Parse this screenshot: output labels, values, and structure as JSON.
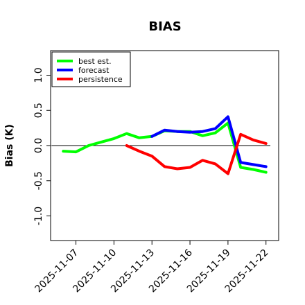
{
  "chart_data": {
    "type": "line",
    "title": "BIAS",
    "xlabel": "",
    "ylabel": "Bias (K)",
    "ylim": [
      -1.35,
      1.35
    ],
    "xlim": [
      "2025-11-05",
      "2025-11-23"
    ],
    "yticks": [
      -1.0,
      -0.5,
      0.0,
      0.5,
      1.0
    ],
    "ytick_labels": [
      "-1.0",
      "-0.5",
      "0.0",
      "0.5",
      "1.0"
    ],
    "xticks": [
      "2025-11-07",
      "2025-11-10",
      "2025-11-13",
      "2025-11-16",
      "2025-11-19",
      "2025-11-22"
    ],
    "highlight_tick": "2025-11-13",
    "highlight_color": "#228b22",
    "zero_line": true,
    "legend_position": "top-left",
    "series": [
      {
        "name": "best est.",
        "color": "#00ff00",
        "x": [
          "2025-11-06",
          "2025-11-07",
          "2025-11-08",
          "2025-11-09",
          "2025-11-10",
          "2025-11-11",
          "2025-11-12",
          "2025-11-13",
          "2025-11-14",
          "2025-11-15",
          "2025-11-16",
          "2025-11-17",
          "2025-11-18",
          "2025-11-19",
          "2025-11-20",
          "2025-11-21",
          "2025-11-22"
        ],
        "values": [
          -0.08,
          -0.09,
          0.0,
          0.05,
          0.1,
          0.17,
          0.11,
          0.13,
          0.21,
          0.2,
          0.2,
          0.14,
          0.18,
          0.32,
          -0.31,
          -0.34,
          -0.38
        ]
      },
      {
        "name": "forecast",
        "color": "#0000ff",
        "x": [
          "2025-11-13",
          "2025-11-14",
          "2025-11-15",
          "2025-11-16",
          "2025-11-17",
          "2025-11-18",
          "2025-11-19",
          "2025-11-20",
          "2025-11-21",
          "2025-11-22"
        ],
        "values": [
          0.13,
          0.22,
          0.2,
          0.19,
          0.2,
          0.24,
          0.41,
          -0.24,
          -0.27,
          -0.3
        ]
      },
      {
        "name": "persistence",
        "color": "#ff0000",
        "x": [
          "2025-11-11",
          "2025-11-12",
          "2025-11-13",
          "2025-11-14",
          "2025-11-15",
          "2025-11-16",
          "2025-11-17",
          "2025-11-18",
          "2025-11-19",
          "2025-11-20",
          "2025-11-21",
          "2025-11-22"
        ],
        "values": [
          0.0,
          -0.08,
          -0.15,
          -0.3,
          -0.33,
          -0.31,
          -0.21,
          -0.26,
          -0.4,
          0.16,
          0.08,
          0.03
        ]
      }
    ]
  }
}
